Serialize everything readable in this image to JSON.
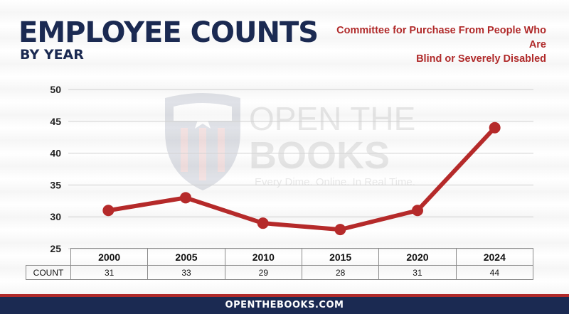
{
  "header": {
    "title": "EMPLOYEE COUNTS",
    "subtitle": "BY YEAR",
    "agency_line1": "Committee for Purchase From People Who Are",
    "agency_line2": "Blind or Severely Disabled"
  },
  "watermark": {
    "line1": "OPEN THE",
    "line2": "BOOKS",
    "tagline": "Every Dime. Online. In Real Time.",
    "icon": "shield-flag-icon"
  },
  "colors": {
    "title": "#1b2a52",
    "accent_red": "#b02a2a",
    "line": "#b52a2a",
    "footer_bg": "#1b2a52"
  },
  "chart_data": {
    "type": "line",
    "title": "EMPLOYEE COUNTS",
    "subtitle": "BY YEAR",
    "categories": [
      "2000",
      "2005",
      "2010",
      "2015",
      "2020",
      "2024"
    ],
    "series": [
      {
        "values": [
          31,
          33,
          29,
          28,
          31,
          44
        ]
      }
    ],
    "ylim": [
      25,
      50
    ],
    "yticks": [
      "25",
      "30",
      "35",
      "40",
      "45",
      "50"
    ],
    "grid": true,
    "xlabel": "",
    "ylabel": ""
  },
  "table": {
    "row_label": "COUNT",
    "values": [
      "31",
      "33",
      "29",
      "28",
      "31",
      "44"
    ]
  },
  "footer": {
    "text": "OPENTHEBOOKS.COM"
  }
}
